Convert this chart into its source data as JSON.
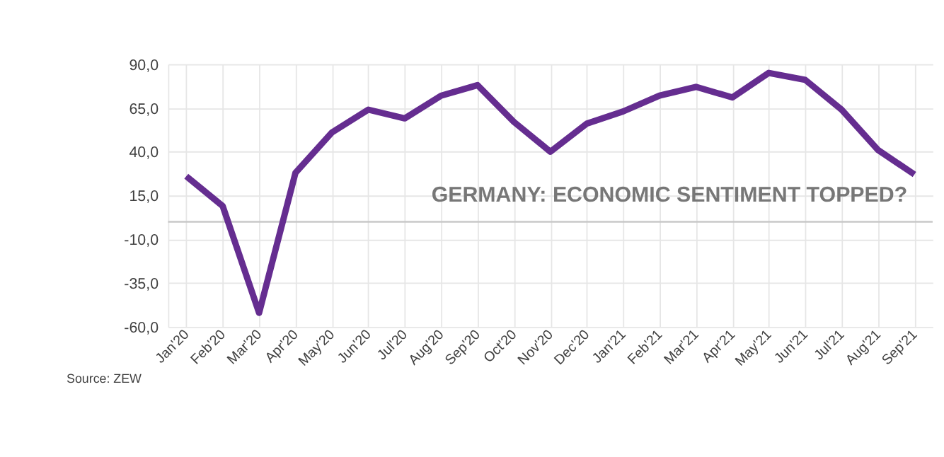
{
  "chart_data": {
    "type": "line",
    "categories": [
      "Jan'20",
      "Feb'20",
      "Mar'20",
      "Apr'20",
      "May'20",
      "Jun'20",
      "Jul'20",
      "Aug'20",
      "Sep'20",
      "Oct'20",
      "Nov'20",
      "Dec'20",
      "Jan'21",
      "Feb'21",
      "Mar'21",
      "Apr'21",
      "May'21",
      "Jun'21",
      "Jul'21",
      "Aug'21",
      "Sep'21"
    ],
    "series": [
      {
        "color": "#652d90",
        "values": [
          26,
          9,
          -52,
          28,
          51,
          64,
          59,
          72,
          78,
          57,
          40,
          56,
          63,
          72,
          77,
          71,
          85,
          81,
          64,
          41,
          27
        ]
      }
    ],
    "ylim": [
      -60,
      90
    ],
    "yticks": [
      {
        "value": -60,
        "label": "-60,0"
      },
      {
        "value": -35,
        "label": "-35,0"
      },
      {
        "value": -10,
        "label": "-10,0"
      },
      {
        "value": 15,
        "label": "15,0"
      },
      {
        "value": 40,
        "label": "40,0"
      },
      {
        "value": 65,
        "label": "65,0"
      },
      {
        "value": 90,
        "label": "90,0"
      }
    ],
    "ref_lines": [
      {
        "axis": "y",
        "value": 0,
        "color": "#c8c8c8"
      }
    ],
    "grid": true,
    "marker": "none",
    "line_style": "solid",
    "annotations": [
      "GERMANY: ECONOMIC SENTIMENT TOPPED?",
      "Source: ZEW"
    ]
  }
}
